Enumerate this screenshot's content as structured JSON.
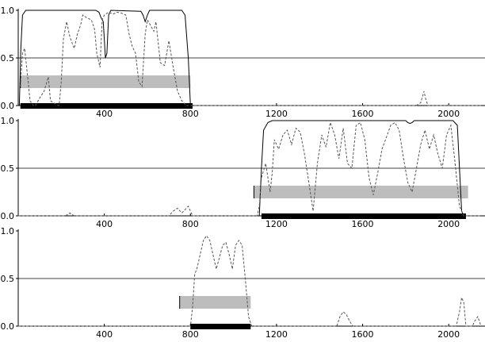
{
  "chart_data": [
    {
      "type": "line",
      "title": "",
      "xlabel": "",
      "ylabel": "",
      "xlim": [
        0,
        2150
      ],
      "ylim": [
        0,
        1.0
      ],
      "x_ticks": [
        400,
        800,
        1200,
        1600,
        2000
      ],
      "x_tick_labels": [
        "400",
        "800",
        "1200",
        "1600",
        "2000"
      ],
      "y_ticks": [
        0.0,
        0.5,
        1.0
      ],
      "y_tick_labels": [
        "0.0",
        "0.5",
        "1.0"
      ],
      "threshold": 0.5,
      "bar_range": [
        10,
        800
      ],
      "thick_bar_range": [
        10,
        810
      ],
      "series": [
        {
          "style": "solid",
          "points": [
            [
              5,
              0
            ],
            [
              12,
              0.6
            ],
            [
              20,
              0.95
            ],
            [
              35,
              1.0
            ],
            [
              360,
              1.0
            ],
            [
              375,
              0.98
            ],
            [
              385,
              0.92
            ],
            [
              395,
              0.88
            ],
            [
              405,
              0.5
            ],
            [
              412,
              0.55
            ],
            [
              420,
              0.95
            ],
            [
              430,
              1.0
            ],
            [
              570,
              0.99
            ],
            [
              580,
              0.95
            ],
            [
              590,
              0.88
            ],
            [
              600,
              0.95
            ],
            [
              610,
              1.0
            ],
            [
              760,
              1.0
            ],
            [
              775,
              0.95
            ],
            [
              790,
              0.5
            ],
            [
              800,
              0.0
            ]
          ]
        },
        {
          "style": "dashed",
          "points": [
            [
              10,
              0.2
            ],
            [
              20,
              0.55
            ],
            [
              30,
              0.6
            ],
            [
              45,
              0.28
            ],
            [
              55,
              0.05
            ],
            [
              70,
              0.0
            ],
            [
              80,
              0.0
            ],
            [
              100,
              0.08
            ],
            [
              120,
              0.15
            ],
            [
              140,
              0.3
            ],
            [
              150,
              0.05
            ],
            [
              170,
              0.02
            ],
            [
              190,
              0.0
            ],
            [
              200,
              0.25
            ],
            [
              210,
              0.7
            ],
            [
              225,
              0.88
            ],
            [
              240,
              0.72
            ],
            [
              260,
              0.6
            ],
            [
              275,
              0.75
            ],
            [
              290,
              0.85
            ],
            [
              300,
              0.95
            ],
            [
              320,
              0.92
            ],
            [
              340,
              0.9
            ],
            [
              355,
              0.8
            ],
            [
              365,
              0.55
            ],
            [
              380,
              0.4
            ],
            [
              390,
              0.9
            ],
            [
              400,
              0.95
            ],
            [
              420,
              0.98
            ],
            [
              440,
              0.96
            ],
            [
              460,
              0.98
            ],
            [
              480,
              0.97
            ],
            [
              500,
              0.95
            ],
            [
              515,
              0.75
            ],
            [
              530,
              0.62
            ],
            [
              545,
              0.55
            ],
            [
              560,
              0.25
            ],
            [
              575,
              0.2
            ],
            [
              590,
              0.75
            ],
            [
              600,
              0.9
            ],
            [
              620,
              0.82
            ],
            [
              630,
              0.78
            ],
            [
              640,
              0.88
            ],
            [
              660,
              0.45
            ],
            [
              680,
              0.42
            ],
            [
              700,
              0.68
            ],
            [
              720,
              0.4
            ],
            [
              740,
              0.15
            ],
            [
              760,
              0.05
            ],
            [
              780,
              0.0
            ],
            [
              1850,
              0.0
            ],
            [
              1870,
              0.03
            ],
            [
              1885,
              0.15
            ],
            [
              1895,
              0.05
            ],
            [
              1905,
              0.0
            ],
            [
              2150,
              0.0
            ]
          ]
        }
      ]
    },
    {
      "type": "line",
      "title": "",
      "xlabel": "",
      "ylabel": "",
      "xlim": [
        0,
        2150
      ],
      "ylim": [
        0,
        1.0
      ],
      "x_ticks": [
        400,
        800,
        1200,
        1600,
        2000
      ],
      "x_tick_labels": [
        "400",
        "800",
        "1200",
        "1600",
        "2000"
      ],
      "y_ticks": [
        0.0,
        0.5,
        1.0
      ],
      "y_tick_labels": [
        "0.0",
        "0.5",
        "1.0"
      ],
      "threshold": 0.5,
      "bar_range": [
        1095,
        2090
      ],
      "thick_bar_range": [
        1130,
        2080
      ],
      "series": [
        {
          "style": "solid",
          "points": [
            [
              0,
              0
            ],
            [
              1120,
              0
            ],
            [
              1130,
              0.5
            ],
            [
              1140,
              0.9
            ],
            [
              1160,
              0.98
            ],
            [
              1180,
              1.0
            ],
            [
              1800,
              1.0
            ],
            [
              1810,
              0.98
            ],
            [
              1820,
              0.97
            ],
            [
              1830,
              0.98
            ],
            [
              1840,
              1.0
            ],
            [
              2020,
              1.0
            ],
            [
              2040,
              0.95
            ],
            [
              2050,
              0.5
            ],
            [
              2060,
              0.05
            ],
            [
              2070,
              0
            ]
          ]
        },
        {
          "style": "dashed",
          "points": [
            [
              0,
              0
            ],
            [
              220,
              0
            ],
            [
              240,
              0.03
            ],
            [
              260,
              0.0
            ],
            [
              700,
              0.0
            ],
            [
              720,
              0.05
            ],
            [
              740,
              0.08
            ],
            [
              760,
              0.03
            ],
            [
              790,
              0.1
            ],
            [
              810,
              0.0
            ],
            [
              1110,
              0.0
            ],
            [
              1120,
              0.1
            ],
            [
              1130,
              0.4
            ],
            [
              1150,
              0.55
            ],
            [
              1170,
              0.25
            ],
            [
              1180,
              0.45
            ],
            [
              1190,
              0.8
            ],
            [
              1210,
              0.7
            ],
            [
              1230,
              0.85
            ],
            [
              1250,
              0.9
            ],
            [
              1270,
              0.75
            ],
            [
              1290,
              0.92
            ],
            [
              1310,
              0.88
            ],
            [
              1330,
              0.65
            ],
            [
              1350,
              0.35
            ],
            [
              1370,
              0.05
            ],
            [
              1390,
              0.55
            ],
            [
              1410,
              0.85
            ],
            [
              1430,
              0.72
            ],
            [
              1450,
              0.98
            ],
            [
              1470,
              0.85
            ],
            [
              1490,
              0.6
            ],
            [
              1510,
              0.92
            ],
            [
              1530,
              0.55
            ],
            [
              1550,
              0.5
            ],
            [
              1570,
              0.95
            ],
            [
              1590,
              0.98
            ],
            [
              1610,
              0.8
            ],
            [
              1630,
              0.4
            ],
            [
              1650,
              0.22
            ],
            [
              1670,
              0.45
            ],
            [
              1690,
              0.7
            ],
            [
              1710,
              0.82
            ],
            [
              1730,
              0.95
            ],
            [
              1750,
              0.98
            ],
            [
              1770,
              0.9
            ],
            [
              1790,
              0.6
            ],
            [
              1810,
              0.35
            ],
            [
              1830,
              0.25
            ],
            [
              1850,
              0.5
            ],
            [
              1870,
              0.75
            ],
            [
              1890,
              0.9
            ],
            [
              1910,
              0.7
            ],
            [
              1930,
              0.85
            ],
            [
              1950,
              0.65
            ],
            [
              1970,
              0.5
            ],
            [
              1990,
              0.85
            ],
            [
              2010,
              0.95
            ],
            [
              2030,
              0.55
            ],
            [
              2050,
              0.1
            ],
            [
              2070,
              0.0
            ],
            [
              2150,
              0.0
            ]
          ]
        }
      ]
    },
    {
      "type": "line",
      "title": "",
      "xlabel": "",
      "ylabel": "",
      "xlim": [
        0,
        2150
      ],
      "ylim": [
        0,
        1.0
      ],
      "x_ticks": [
        400,
        800,
        1200,
        1600,
        2000
      ],
      "x_tick_labels": [
        "400",
        "800",
        "1200",
        "1600",
        "2000"
      ],
      "y_ticks": [
        0.0,
        0.5,
        1.0
      ],
      "y_tick_labels": [
        "0.0",
        "0.5",
        "1.0"
      ],
      "threshold": 0.5,
      "bar_range": [
        750,
        1080
      ],
      "thick_bar_range": [
        800,
        1080
      ],
      "series": [
        {
          "style": "dashed",
          "points": [
            [
              0,
              0
            ],
            [
              800,
              0
            ],
            [
              810,
              0.2
            ],
            [
              820,
              0.55
            ],
            [
              830,
              0.6
            ],
            [
              845,
              0.75
            ],
            [
              860,
              0.9
            ],
            [
              875,
              0.95
            ],
            [
              890,
              0.9
            ],
            [
              905,
              0.75
            ],
            [
              920,
              0.6
            ],
            [
              935,
              0.72
            ],
            [
              950,
              0.85
            ],
            [
              965,
              0.88
            ],
            [
              980,
              0.75
            ],
            [
              995,
              0.6
            ],
            [
              1010,
              0.85
            ],
            [
              1025,
              0.9
            ],
            [
              1040,
              0.85
            ],
            [
              1055,
              0.5
            ],
            [
              1070,
              0.1
            ],
            [
              1085,
              0.0
            ],
            [
              1480,
              0.0
            ],
            [
              1495,
              0.1
            ],
            [
              1510,
              0.15
            ],
            [
              1525,
              0.12
            ],
            [
              1540,
              0.05
            ],
            [
              1555,
              0.0
            ],
            [
              2035,
              0.0
            ],
            [
              2050,
              0.15
            ],
            [
              2060,
              0.3
            ],
            [
              2070,
              0.25
            ],
            [
              2080,
              0.0
            ],
            [
              2110,
              0.0
            ],
            [
              2120,
              0.05
            ],
            [
              2135,
              0.1
            ],
            [
              2150,
              0.0
            ]
          ]
        }
      ]
    }
  ]
}
